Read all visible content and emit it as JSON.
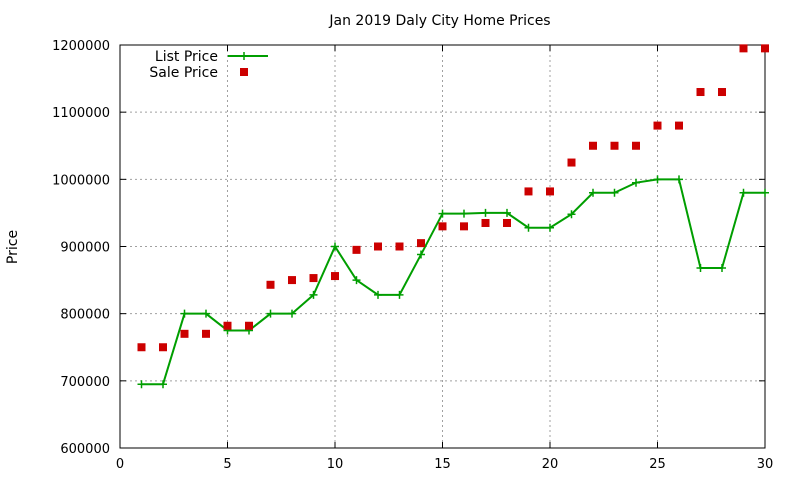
{
  "chart_data": {
    "type": "line",
    "title": "Jan 2019 Daly City Home Prices",
    "xlabel": "",
    "ylabel": "Price",
    "xlim": [
      0,
      30
    ],
    "ylim": [
      600000,
      1200000
    ],
    "x_ticks": [
      "0",
      "5",
      "10",
      "15",
      "20",
      "25",
      "30"
    ],
    "y_ticks": [
      "600000",
      "700000",
      "800000",
      "900000",
      "1000000",
      "1100000",
      "1200000"
    ],
    "grid": true,
    "legend_position": "top-left",
    "series": [
      {
        "name": "List Price",
        "style": "line-plus",
        "color": "#009e00",
        "x": [
          1,
          2,
          3,
          4,
          5,
          6,
          7,
          8,
          9,
          10,
          11,
          12,
          13,
          14,
          15,
          16,
          17,
          18,
          19,
          20,
          21,
          22,
          23,
          24,
          25,
          26,
          27,
          28,
          29,
          30
        ],
        "y": [
          695000,
          695000,
          800000,
          800000,
          775000,
          775000,
          800000,
          800000,
          828000,
          900000,
          850000,
          828000,
          828000,
          888000,
          949000,
          949000,
          950000,
          950000,
          928000,
          928000,
          948000,
          980000,
          980000,
          995000,
          1000000,
          1000000,
          868000,
          868000,
          980000,
          980000
        ]
      },
      {
        "name": "Sale Price",
        "style": "square-markers",
        "color": "#cc0000",
        "x": [
          1,
          2,
          3,
          4,
          5,
          6,
          7,
          8,
          9,
          10,
          11,
          12,
          13,
          14,
          15,
          16,
          17,
          18,
          19,
          20,
          21,
          22,
          23,
          24,
          25,
          26,
          27,
          28,
          29,
          30
        ],
        "y": [
          750000,
          750000,
          770000,
          770000,
          782000,
          782000,
          843000,
          850000,
          853000,
          856000,
          895000,
          900000,
          900000,
          905000,
          930000,
          930000,
          935000,
          935000,
          982000,
          982000,
          1025000,
          1050000,
          1050000,
          1050000,
          1080000,
          1080000,
          1130000,
          1130000,
          1195000,
          1195000
        ]
      }
    ]
  }
}
